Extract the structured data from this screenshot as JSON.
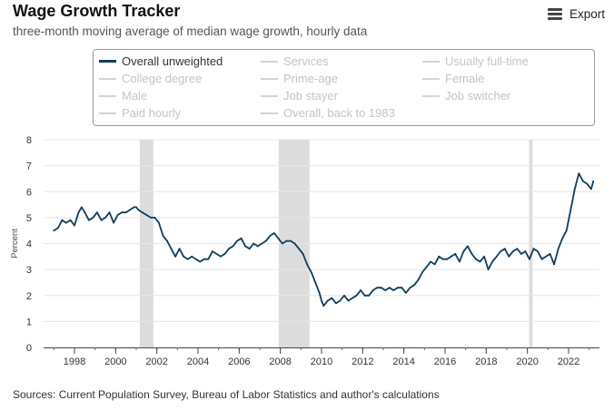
{
  "header": {
    "title": "Wage Growth Tracker",
    "subtitle": "three-month moving average of median wage growth, hourly data",
    "export_label": "Export"
  },
  "source": "Sources: Current Population Survey, Bureau of Labor Statistics and author's calculations",
  "colors": {
    "series": "#0f3d5e",
    "recession": "#dcdcdc",
    "grid": "#e6e6e6",
    "legend_inactive": "#c4c4c4"
  },
  "legend": {
    "active": "Overall unweighted",
    "rows": [
      [
        "Overall unweighted",
        "Services",
        "Usually full-time"
      ],
      [
        "College degree",
        "Prime-age",
        "Female"
      ],
      [
        "Male",
        "Job stayer",
        "Job switcher"
      ],
      [
        "Paid hourly",
        "Overall, back to 1983"
      ]
    ]
  },
  "chart_data": {
    "type": "line",
    "title": "Wage Growth Tracker",
    "ylabel": "Percent",
    "xlabel": "",
    "xlim": [
      1996.5,
      2023.5
    ],
    "ylim": [
      0,
      8
    ],
    "yticks": [
      0,
      1,
      2,
      3,
      4,
      5,
      6,
      7,
      8
    ],
    "xticks": [
      "1998",
      "2000",
      "2002",
      "2004",
      "2006",
      "2008",
      "2010",
      "2012",
      "2014",
      "2016",
      "2018",
      "2020",
      "2022"
    ],
    "grid": true,
    "recessions": [
      [
        2001.17,
        2001.83
      ],
      [
        2007.92,
        2009.42
      ],
      [
        2020.08,
        2020.25
      ]
    ],
    "series": [
      {
        "name": "Overall unweighted",
        "x": [
          1997.0,
          1997.2,
          1997.4,
          1997.6,
          1997.8,
          1998.0,
          1998.2,
          1998.35,
          1998.5,
          1998.7,
          1998.9,
          1999.1,
          1999.3,
          1999.5,
          1999.7,
          1999.9,
          2000.1,
          2000.3,
          2000.5,
          2000.7,
          2000.9,
          2001.0,
          2001.1,
          2001.3,
          2001.5,
          2001.7,
          2001.9,
          2002.1,
          2002.3,
          2002.5,
          2002.7,
          2002.9,
          2003.1,
          2003.3,
          2003.5,
          2003.7,
          2003.9,
          2004.1,
          2004.3,
          2004.5,
          2004.7,
          2004.9,
          2005.1,
          2005.3,
          2005.5,
          2005.7,
          2005.9,
          2006.1,
          2006.3,
          2006.5,
          2006.7,
          2006.9,
          2007.1,
          2007.3,
          2007.5,
          2007.7,
          2007.9,
          2008.1,
          2008.3,
          2008.5,
          2008.7,
          2008.9,
          2009.1,
          2009.3,
          2009.5,
          2009.7,
          2009.9,
          2010.0,
          2010.1,
          2010.3,
          2010.5,
          2010.7,
          2010.9,
          2011.1,
          2011.3,
          2011.5,
          2011.7,
          2011.9,
          2012.1,
          2012.3,
          2012.5,
          2012.7,
          2012.9,
          2013.1,
          2013.3,
          2013.5,
          2013.7,
          2013.9,
          2014.1,
          2014.3,
          2014.5,
          2014.7,
          2014.9,
          2015.1,
          2015.3,
          2015.5,
          2015.7,
          2015.9,
          2016.1,
          2016.3,
          2016.5,
          2016.7,
          2016.9,
          2017.1,
          2017.3,
          2017.5,
          2017.7,
          2017.9,
          2018.1,
          2018.3,
          2018.5,
          2018.7,
          2018.9,
          2019.1,
          2019.3,
          2019.5,
          2019.7,
          2019.9,
          2020.1,
          2020.3,
          2020.5,
          2020.7,
          2020.9,
          2021.1,
          2021.3,
          2021.5,
          2021.7,
          2021.9,
          2022.1,
          2022.3,
          2022.5,
          2022.7,
          2022.9,
          2023.1,
          2023.2
        ],
        "values": [
          4.5,
          4.6,
          4.9,
          4.8,
          4.9,
          4.7,
          5.2,
          5.4,
          5.2,
          4.9,
          5.0,
          5.2,
          4.9,
          5.0,
          5.2,
          4.8,
          5.1,
          5.2,
          5.2,
          5.3,
          5.4,
          5.4,
          5.3,
          5.2,
          5.1,
          5.0,
          5.0,
          4.8,
          4.3,
          4.1,
          3.8,
          3.5,
          3.8,
          3.5,
          3.4,
          3.5,
          3.4,
          3.3,
          3.4,
          3.4,
          3.7,
          3.6,
          3.5,
          3.6,
          3.8,
          3.9,
          4.1,
          4.2,
          3.9,
          3.8,
          4.0,
          3.9,
          4.0,
          4.1,
          4.3,
          4.4,
          4.2,
          4.0,
          4.1,
          4.1,
          4.0,
          3.8,
          3.6,
          3.2,
          2.9,
          2.5,
          2.1,
          1.8,
          1.6,
          1.8,
          1.9,
          1.7,
          1.8,
          2.0,
          1.8,
          1.9,
          2.0,
          2.2,
          2.0,
          2.0,
          2.2,
          2.3,
          2.3,
          2.2,
          2.3,
          2.2,
          2.3,
          2.3,
          2.1,
          2.3,
          2.4,
          2.6,
          2.9,
          3.1,
          3.3,
          3.2,
          3.5,
          3.4,
          3.4,
          3.5,
          3.6,
          3.3,
          3.7,
          3.9,
          3.6,
          3.4,
          3.3,
          3.5,
          3.0,
          3.3,
          3.5,
          3.7,
          3.8,
          3.5,
          3.7,
          3.8,
          3.6,
          3.7,
          3.4,
          3.8,
          3.7,
          3.4,
          3.5,
          3.6,
          3.2,
          3.8,
          4.2,
          4.5,
          5.3,
          6.1,
          6.7,
          6.4,
          6.3,
          6.1,
          6.4
        ]
      }
    ]
  }
}
